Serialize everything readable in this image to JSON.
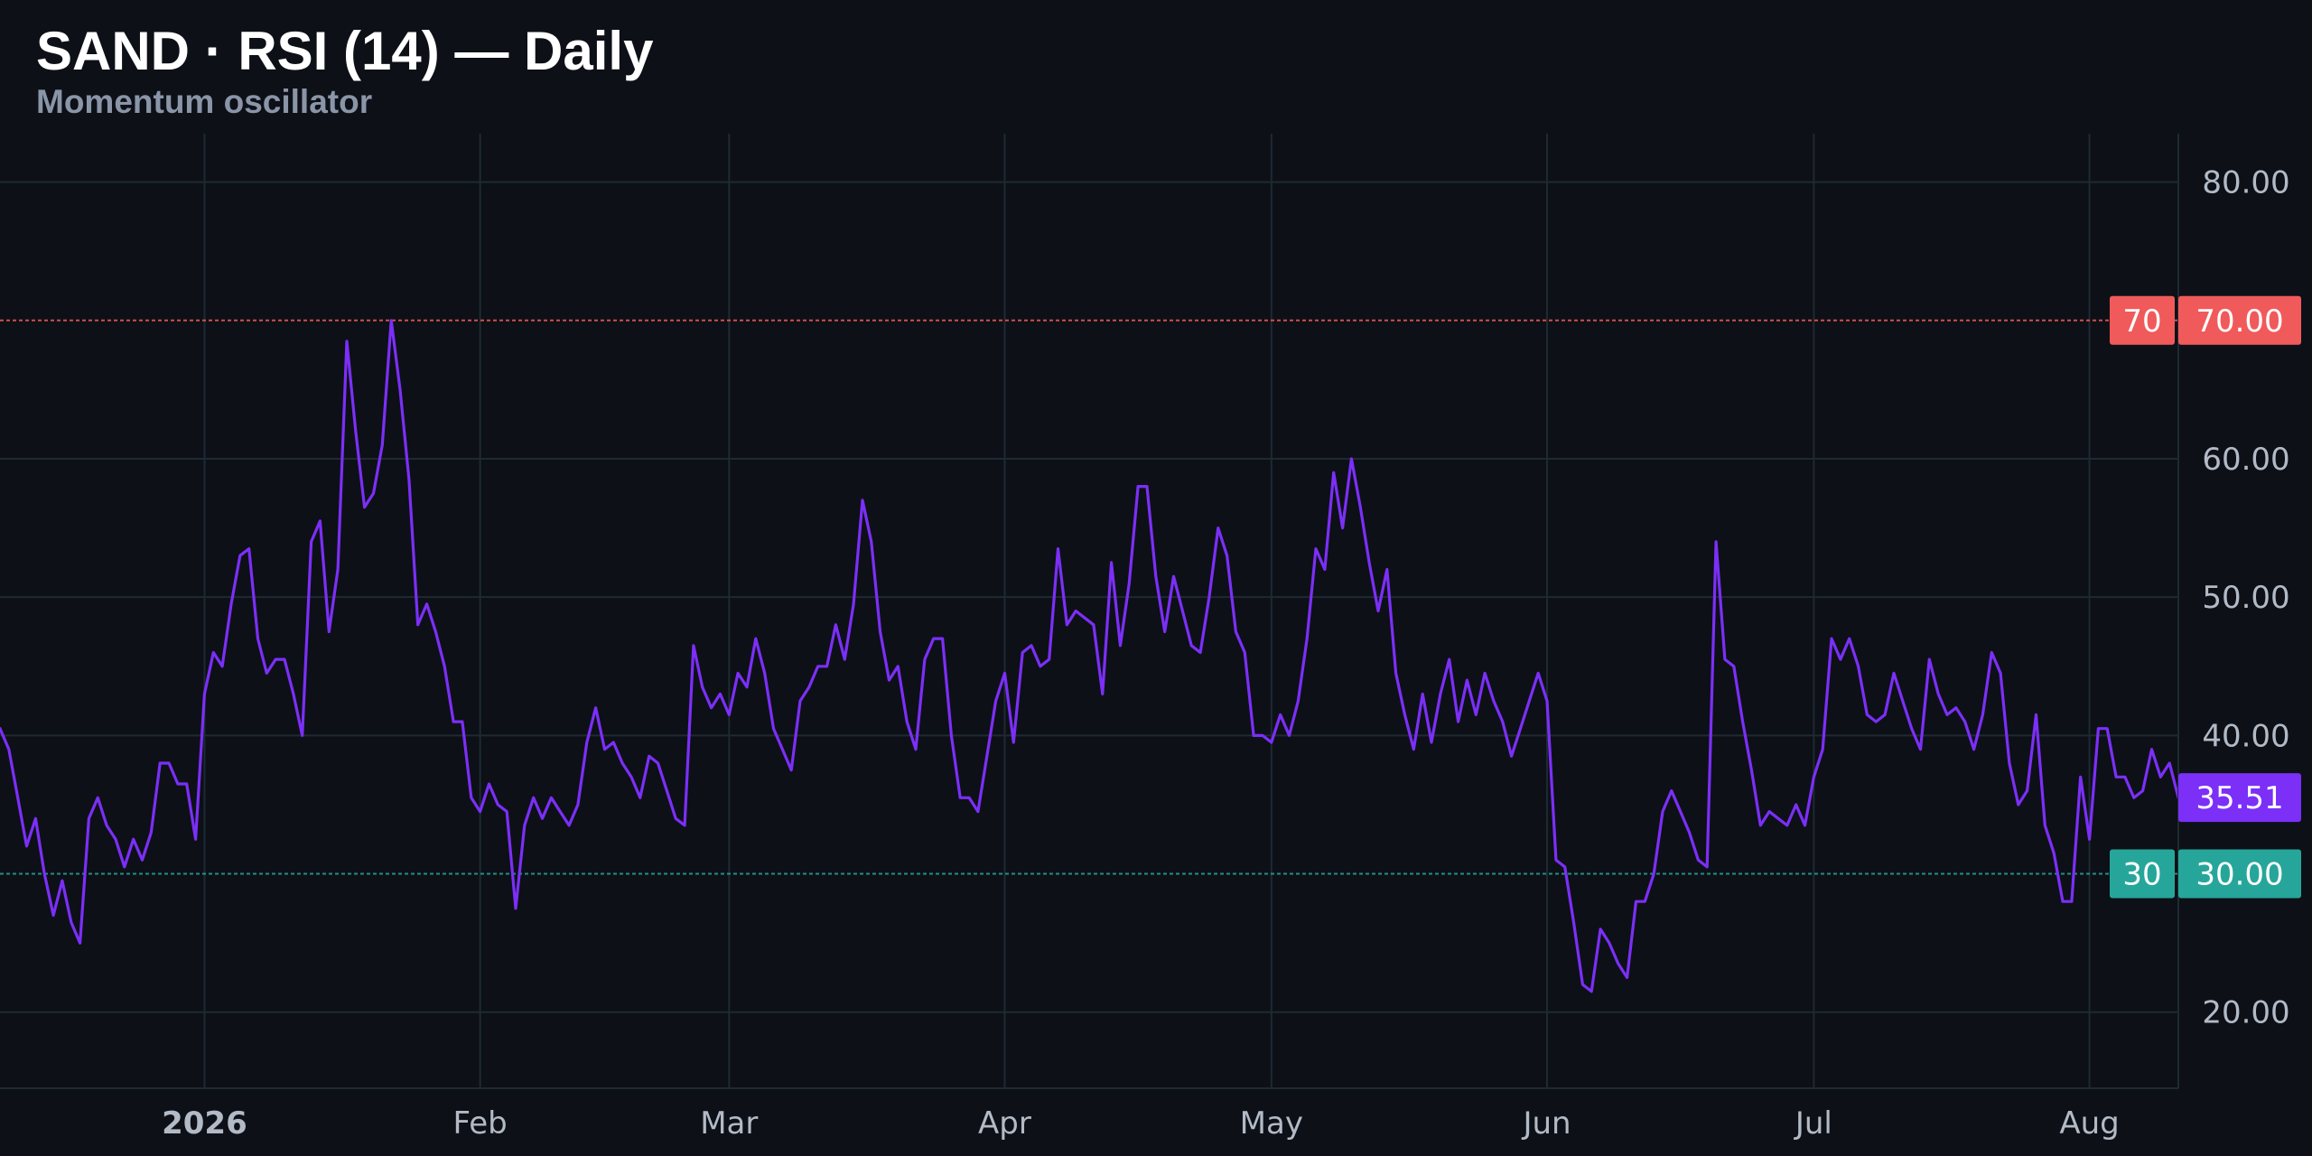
{
  "header": {
    "title": "SAND · RSI (14) — Daily",
    "subtitle": "Momentum oscillator"
  },
  "colors": {
    "background": "#0d1017",
    "grid": "#1e2a33",
    "rsi_line": "#7b2ff7",
    "overbought": "#f05a5a",
    "oversold": "#26a69a",
    "axis_text": "#b2bac6",
    "last_value_tag": "#7b2ff7"
  },
  "chart_data": {
    "type": "line",
    "title": "SAND · RSI (14) — Daily",
    "subtitle": "Momentum oscillator",
    "x_axis": {
      "type": "date",
      "range": [
        "2025-12-09",
        "2026-08-11"
      ],
      "ticks": [
        {
          "label": "2026",
          "date": "2026-01-01",
          "bold": true
        },
        {
          "label": "Feb",
          "date": "2026-02-01"
        },
        {
          "label": "Mar",
          "date": "2026-03-01"
        },
        {
          "label": "Apr",
          "date": "2026-04-01"
        },
        {
          "label": "May",
          "date": "2026-05-01"
        },
        {
          "label": "Jun",
          "date": "2026-06-01"
        },
        {
          "label": "Jul",
          "date": "2026-07-01"
        },
        {
          "label": "Aug",
          "date": "2026-08-01"
        }
      ]
    },
    "y_axis": {
      "range": [
        14.5,
        83.5
      ],
      "ticks": [
        {
          "value": 20,
          "label": "20.00"
        },
        {
          "value": 40,
          "label": "40.00"
        },
        {
          "value": 50,
          "label": "50.00"
        },
        {
          "value": 60,
          "label": "60.00"
        },
        {
          "value": 80,
          "label": "80.00"
        }
      ]
    },
    "grid": true,
    "levels": [
      {
        "name": "overbought",
        "value": 70,
        "tag": "70",
        "label": "70.00"
      },
      {
        "name": "oversold",
        "value": 30,
        "tag": "30",
        "label": "30.00"
      }
    ],
    "last_value": {
      "value": 35.51,
      "label": "35.51"
    },
    "series": [
      {
        "start_date": "2025-12-09",
        "interval": "daily",
        "values": [
          40.5,
          39.0,
          35.5,
          32.0,
          34.0,
          30.0,
          27.0,
          29.5,
          26.5,
          25.0,
          34.0,
          35.5,
          33.5,
          32.5,
          30.5,
          32.5,
          31.0,
          33.0,
          38.0,
          38.0,
          36.5,
          36.5,
          32.5,
          43.0,
          46.0,
          45.0,
          49.5,
          53.0,
          53.5,
          47.0,
          44.5,
          45.5,
          45.5,
          43.0,
          40.0,
          54.0,
          55.5,
          47.5,
          52.0,
          68.5,
          62.0,
          56.5,
          57.5,
          61.0,
          70.0,
          65.0,
          58.5,
          48.0,
          49.5,
          47.5,
          45.0,
          41.0,
          41.0,
          35.5,
          34.5,
          36.5,
          35.0,
          34.5,
          27.5,
          33.5,
          35.5,
          34.0,
          35.5,
          34.5,
          33.5,
          35.0,
          39.5,
          42.0,
          39.0,
          39.5,
          38.0,
          37.0,
          35.5,
          38.5,
          38.0,
          36.0,
          34.0,
          33.5,
          46.5,
          43.5,
          42.0,
          43.0,
          41.5,
          44.5,
          43.5,
          47.0,
          44.5,
          40.5,
          39.0,
          37.5,
          42.5,
          43.5,
          45.0,
          45.0,
          48.0,
          45.5,
          49.5,
          57.0,
          54.0,
          47.5,
          44.0,
          45.0,
          41.0,
          39.0,
          45.5,
          47.0,
          47.0,
          40.0,
          35.5,
          35.5,
          34.5,
          38.5,
          42.5,
          44.5,
          39.5,
          46.0,
          46.5,
          45.0,
          45.5,
          53.5,
          48.0,
          49.0,
          48.5,
          48.0,
          43.0,
          52.5,
          46.5,
          51.0,
          58.0,
          58.0,
          51.5,
          47.5,
          51.5,
          49.0,
          46.5,
          46.0,
          50.0,
          55.0,
          53.0,
          47.5,
          46.0,
          40.0,
          40.0,
          39.5,
          41.5,
          40.0,
          42.5,
          47.0,
          53.5,
          52.0,
          59.0,
          55.0,
          60.0,
          56.5,
          52.5,
          49.0,
          52.0,
          44.5,
          41.5,
          39.0,
          43.0,
          39.5,
          43.0,
          45.5,
          41.0,
          44.0,
          41.5,
          44.5,
          42.5,
          41.0,
          38.5,
          40.5,
          42.5,
          44.5,
          42.5,
          31.0,
          30.5,
          26.5,
          22.0,
          21.5,
          26.0,
          25.0,
          23.5,
          22.5,
          28.0,
          28.0,
          30.0,
          34.5,
          36.0,
          34.5,
          33.0,
          31.0,
          30.5,
          54.0,
          45.5,
          45.0,
          41.0,
          37.5,
          33.5,
          34.5,
          34.0,
          33.5,
          35.0,
          33.5,
          37.0,
          39.0,
          47.0,
          45.5,
          47.0,
          45.0,
          41.5,
          41.0,
          41.5,
          44.5,
          42.5,
          40.5,
          39.0,
          45.5,
          43.0,
          41.5,
          42.0,
          41.0,
          39.0,
          41.5,
          46.0,
          44.5,
          38.0,
          35.0,
          36.0,
          41.5,
          33.5,
          31.5,
          28.0,
          28.0,
          37.0,
          32.5,
          40.5,
          40.5,
          37.0,
          37.0,
          35.5,
          36.0,
          39.0,
          37.0,
          38.0,
          35.51
        ]
      }
    ]
  }
}
